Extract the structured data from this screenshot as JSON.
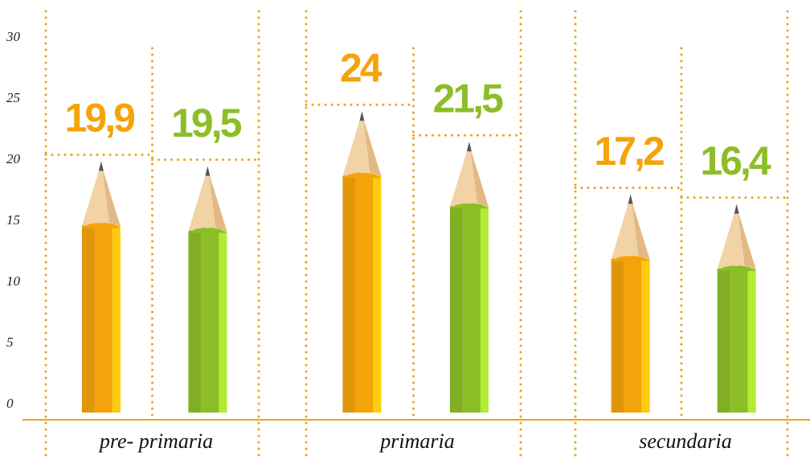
{
  "chart_data": {
    "type": "bar",
    "categories": [
      "pre- primaria",
      "primaria",
      "secundaria"
    ],
    "series": [
      {
        "color": "#f5a30a",
        "values": [
          19.9,
          24,
          17.2
        ],
        "value_labels": [
          "19,9",
          "24",
          "17,2"
        ]
      },
      {
        "color": "#8dbd27",
        "values": [
          19.5,
          21.5,
          16.4
        ],
        "value_labels": [
          "19,5",
          "21,5",
          "16,4"
        ]
      }
    ],
    "ylim": [
      0,
      30
    ],
    "yticks": [
      0,
      5,
      10,
      15,
      20,
      25,
      30
    ]
  }
}
